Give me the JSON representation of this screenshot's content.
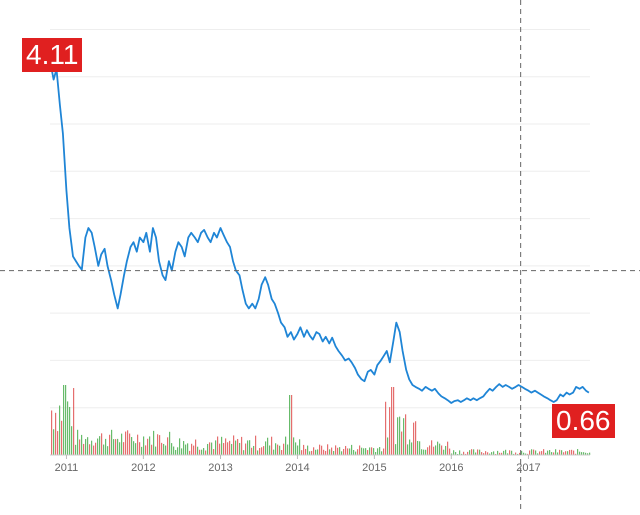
{
  "chart_data": {
    "type": "line",
    "title": "",
    "xlabel": "",
    "ylabel": "",
    "x_ticks": [
      "2011",
      "2012",
      "2013",
      "2014",
      "2015",
      "2016",
      "2017"
    ],
    "xlim": [
      "2010-10-15",
      "2017-10-20"
    ],
    "ylim": [
      0.0,
      4.6
    ],
    "grid": true,
    "legend": "none",
    "colors": {
      "line": "#1f85d6",
      "badge": "#e02020",
      "vol_up": "#e05555",
      "vol_down": "#4caf50",
      "crosshair": "#666666"
    },
    "crosshair": {
      "date": "2016-11-25",
      "value": 1.95
    },
    "annotations": [
      {
        "id": "high",
        "text": "4.11",
        "date": "2010-10-20",
        "value": 4.11
      },
      {
        "id": "low",
        "text": "0.66",
        "date": "2017-10-15",
        "value": 0.66
      }
    ],
    "series": [
      {
        "points": [
          [
            "2010-10-20",
            4.11
          ],
          [
            "2010-11-01",
            3.97
          ],
          [
            "2010-11-15",
            4.08
          ],
          [
            "2010-12-01",
            3.7
          ],
          [
            "2010-12-15",
            3.4
          ],
          [
            "2011-01-01",
            2.8
          ],
          [
            "2011-01-15",
            2.4
          ],
          [
            "2011-02-01",
            2.1
          ],
          [
            "2011-02-15",
            2.05
          ],
          [
            "2011-03-01",
            2.0
          ],
          [
            "2011-03-15",
            1.96
          ],
          [
            "2011-04-01",
            2.3
          ],
          [
            "2011-04-15",
            2.4
          ],
          [
            "2011-05-01",
            2.35
          ],
          [
            "2011-05-15",
            2.2
          ],
          [
            "2011-06-01",
            2.0
          ],
          [
            "2011-06-15",
            2.12
          ],
          [
            "2011-07-01",
            2.18
          ],
          [
            "2011-07-15",
            2.0
          ],
          [
            "2011-08-01",
            1.85
          ],
          [
            "2011-08-15",
            1.7
          ],
          [
            "2011-09-01",
            1.55
          ],
          [
            "2011-09-15",
            1.7
          ],
          [
            "2011-10-01",
            1.9
          ],
          [
            "2011-10-15",
            2.05
          ],
          [
            "2011-11-01",
            2.2
          ],
          [
            "2011-11-15",
            2.25
          ],
          [
            "2011-12-01",
            2.15
          ],
          [
            "2011-12-15",
            2.3
          ],
          [
            "2012-01-01",
            2.25
          ],
          [
            "2012-01-15",
            2.35
          ],
          [
            "2012-02-01",
            2.15
          ],
          [
            "2012-02-15",
            2.4
          ],
          [
            "2012-03-01",
            2.3
          ],
          [
            "2012-03-15",
            2.05
          ],
          [
            "2012-04-01",
            1.9
          ],
          [
            "2012-04-15",
            1.85
          ],
          [
            "2012-05-01",
            2.05
          ],
          [
            "2012-05-15",
            1.95
          ],
          [
            "2012-06-01",
            2.15
          ],
          [
            "2012-06-15",
            2.25
          ],
          [
            "2012-07-01",
            2.2
          ],
          [
            "2012-07-15",
            2.1
          ],
          [
            "2012-08-01",
            2.3
          ],
          [
            "2012-08-15",
            2.35
          ],
          [
            "2012-09-01",
            2.3
          ],
          [
            "2012-09-15",
            2.25
          ],
          [
            "2012-10-01",
            2.35
          ],
          [
            "2012-10-15",
            2.38
          ],
          [
            "2012-11-01",
            2.3
          ],
          [
            "2012-11-15",
            2.25
          ],
          [
            "2012-12-01",
            2.35
          ],
          [
            "2012-12-15",
            2.3
          ],
          [
            "2013-01-01",
            2.4
          ],
          [
            "2013-01-15",
            2.33
          ],
          [
            "2013-02-01",
            2.25
          ],
          [
            "2013-02-15",
            2.2
          ],
          [
            "2013-03-01",
            2.05
          ],
          [
            "2013-03-15",
            1.95
          ],
          [
            "2013-04-01",
            1.9
          ],
          [
            "2013-04-15",
            1.75
          ],
          [
            "2013-05-01",
            1.6
          ],
          [
            "2013-05-15",
            1.55
          ],
          [
            "2013-06-01",
            1.6
          ],
          [
            "2013-06-15",
            1.55
          ],
          [
            "2013-07-01",
            1.65
          ],
          [
            "2013-07-15",
            1.8
          ],
          [
            "2013-08-01",
            1.88
          ],
          [
            "2013-08-15",
            1.8
          ],
          [
            "2013-09-01",
            1.65
          ],
          [
            "2013-09-15",
            1.6
          ],
          [
            "2013-10-01",
            1.5
          ],
          [
            "2013-10-15",
            1.4
          ],
          [
            "2013-11-01",
            1.35
          ],
          [
            "2013-11-15",
            1.25
          ],
          [
            "2013-12-01",
            1.3
          ],
          [
            "2013-12-15",
            1.22
          ],
          [
            "2014-01-01",
            1.28
          ],
          [
            "2014-01-15",
            1.35
          ],
          [
            "2014-02-01",
            1.25
          ],
          [
            "2014-02-15",
            1.32
          ],
          [
            "2014-03-01",
            1.26
          ],
          [
            "2014-03-15",
            1.22
          ],
          [
            "2014-04-01",
            1.3
          ],
          [
            "2014-04-15",
            1.28
          ],
          [
            "2014-05-01",
            1.2
          ],
          [
            "2014-05-15",
            1.25
          ],
          [
            "2014-06-01",
            1.18
          ],
          [
            "2014-06-15",
            1.24
          ],
          [
            "2014-07-01",
            1.15
          ],
          [
            "2014-07-15",
            1.1
          ],
          [
            "2014-08-01",
            1.05
          ],
          [
            "2014-08-15",
            1.0
          ],
          [
            "2014-09-01",
            1.02
          ],
          [
            "2014-09-15",
            0.98
          ],
          [
            "2014-10-01",
            0.92
          ],
          [
            "2014-10-15",
            0.85
          ],
          [
            "2014-11-01",
            0.8
          ],
          [
            "2014-11-15",
            0.78
          ],
          [
            "2014-12-01",
            0.88
          ],
          [
            "2014-12-15",
            0.9
          ],
          [
            "2015-01-01",
            0.85
          ],
          [
            "2015-01-15",
            0.95
          ],
          [
            "2015-02-01",
            1.0
          ],
          [
            "2015-02-15",
            1.05
          ],
          [
            "2015-03-01",
            1.1
          ],
          [
            "2015-03-15",
            0.98
          ],
          [
            "2015-04-01",
            1.2
          ],
          [
            "2015-04-15",
            1.4
          ],
          [
            "2015-05-01",
            1.3
          ],
          [
            "2015-05-15",
            1.1
          ],
          [
            "2015-06-01",
            0.9
          ],
          [
            "2015-06-15",
            0.8
          ],
          [
            "2015-07-01",
            0.74
          ],
          [
            "2015-07-15",
            0.72
          ],
          [
            "2015-08-01",
            0.7
          ],
          [
            "2015-08-15",
            0.68
          ],
          [
            "2015-09-01",
            0.72
          ],
          [
            "2015-09-15",
            0.7
          ],
          [
            "2015-10-01",
            0.68
          ],
          [
            "2015-10-15",
            0.7
          ],
          [
            "2015-11-01",
            0.65
          ],
          [
            "2015-11-15",
            0.62
          ],
          [
            "2015-12-01",
            0.6
          ],
          [
            "2015-12-15",
            0.58
          ],
          [
            "2016-01-01",
            0.55
          ],
          [
            "2016-01-15",
            0.57
          ],
          [
            "2016-02-01",
            0.58
          ],
          [
            "2016-02-15",
            0.56
          ],
          [
            "2016-03-01",
            0.58
          ],
          [
            "2016-03-15",
            0.6
          ],
          [
            "2016-04-01",
            0.58
          ],
          [
            "2016-04-15",
            0.6
          ],
          [
            "2016-05-01",
            0.58
          ],
          [
            "2016-05-15",
            0.6
          ],
          [
            "2016-06-01",
            0.62
          ],
          [
            "2016-06-15",
            0.66
          ],
          [
            "2016-07-01",
            0.7
          ],
          [
            "2016-07-15",
            0.68
          ],
          [
            "2016-08-01",
            0.72
          ],
          [
            "2016-08-15",
            0.75
          ],
          [
            "2016-09-01",
            0.72
          ],
          [
            "2016-09-15",
            0.74
          ],
          [
            "2016-10-01",
            0.72
          ],
          [
            "2016-10-15",
            0.7
          ],
          [
            "2016-11-01",
            0.72
          ],
          [
            "2016-11-15",
            0.74
          ],
          [
            "2016-12-01",
            0.72
          ],
          [
            "2016-12-15",
            0.7
          ],
          [
            "2017-01-01",
            0.68
          ],
          [
            "2017-01-15",
            0.66
          ],
          [
            "2017-02-01",
            0.68
          ],
          [
            "2017-02-15",
            0.66
          ],
          [
            "2017-03-01",
            0.64
          ],
          [
            "2017-03-15",
            0.62
          ],
          [
            "2017-04-01",
            0.6
          ],
          [
            "2017-04-15",
            0.58
          ],
          [
            "2017-05-01",
            0.56
          ],
          [
            "2017-05-15",
            0.58
          ],
          [
            "2017-06-01",
            0.64
          ],
          [
            "2017-06-15",
            0.62
          ],
          [
            "2017-07-01",
            0.66
          ],
          [
            "2017-07-15",
            0.64
          ],
          [
            "2017-08-01",
            0.66
          ],
          [
            "2017-08-15",
            0.72
          ],
          [
            "2017-09-01",
            0.7
          ],
          [
            "2017-09-15",
            0.72
          ],
          [
            "2017-10-01",
            0.68
          ],
          [
            "2017-10-15",
            0.66
          ]
        ]
      }
    ]
  }
}
